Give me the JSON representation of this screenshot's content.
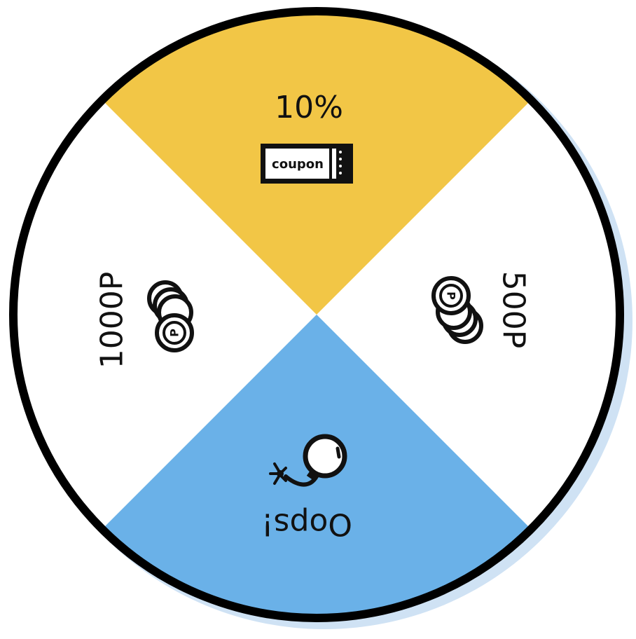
{
  "wheel": {
    "colors": {
      "top": "#F2C646",
      "bottom": "#6AB1E8",
      "side": "#FFFFFF",
      "rim": "#000000",
      "shadow": "#CFE2F4"
    },
    "segments": [
      {
        "id": "top",
        "label": "10%",
        "icon": "coupon-icon",
        "icon_text": "coupon"
      },
      {
        "id": "right",
        "label": "500P",
        "icon": "coin-stack-icon",
        "icon_text": "P"
      },
      {
        "id": "bottom",
        "label": "Oops!",
        "icon": "bomb-icon"
      },
      {
        "id": "left",
        "label": "1000P",
        "icon": "coin-stack-icon",
        "icon_text": "P"
      }
    ]
  }
}
